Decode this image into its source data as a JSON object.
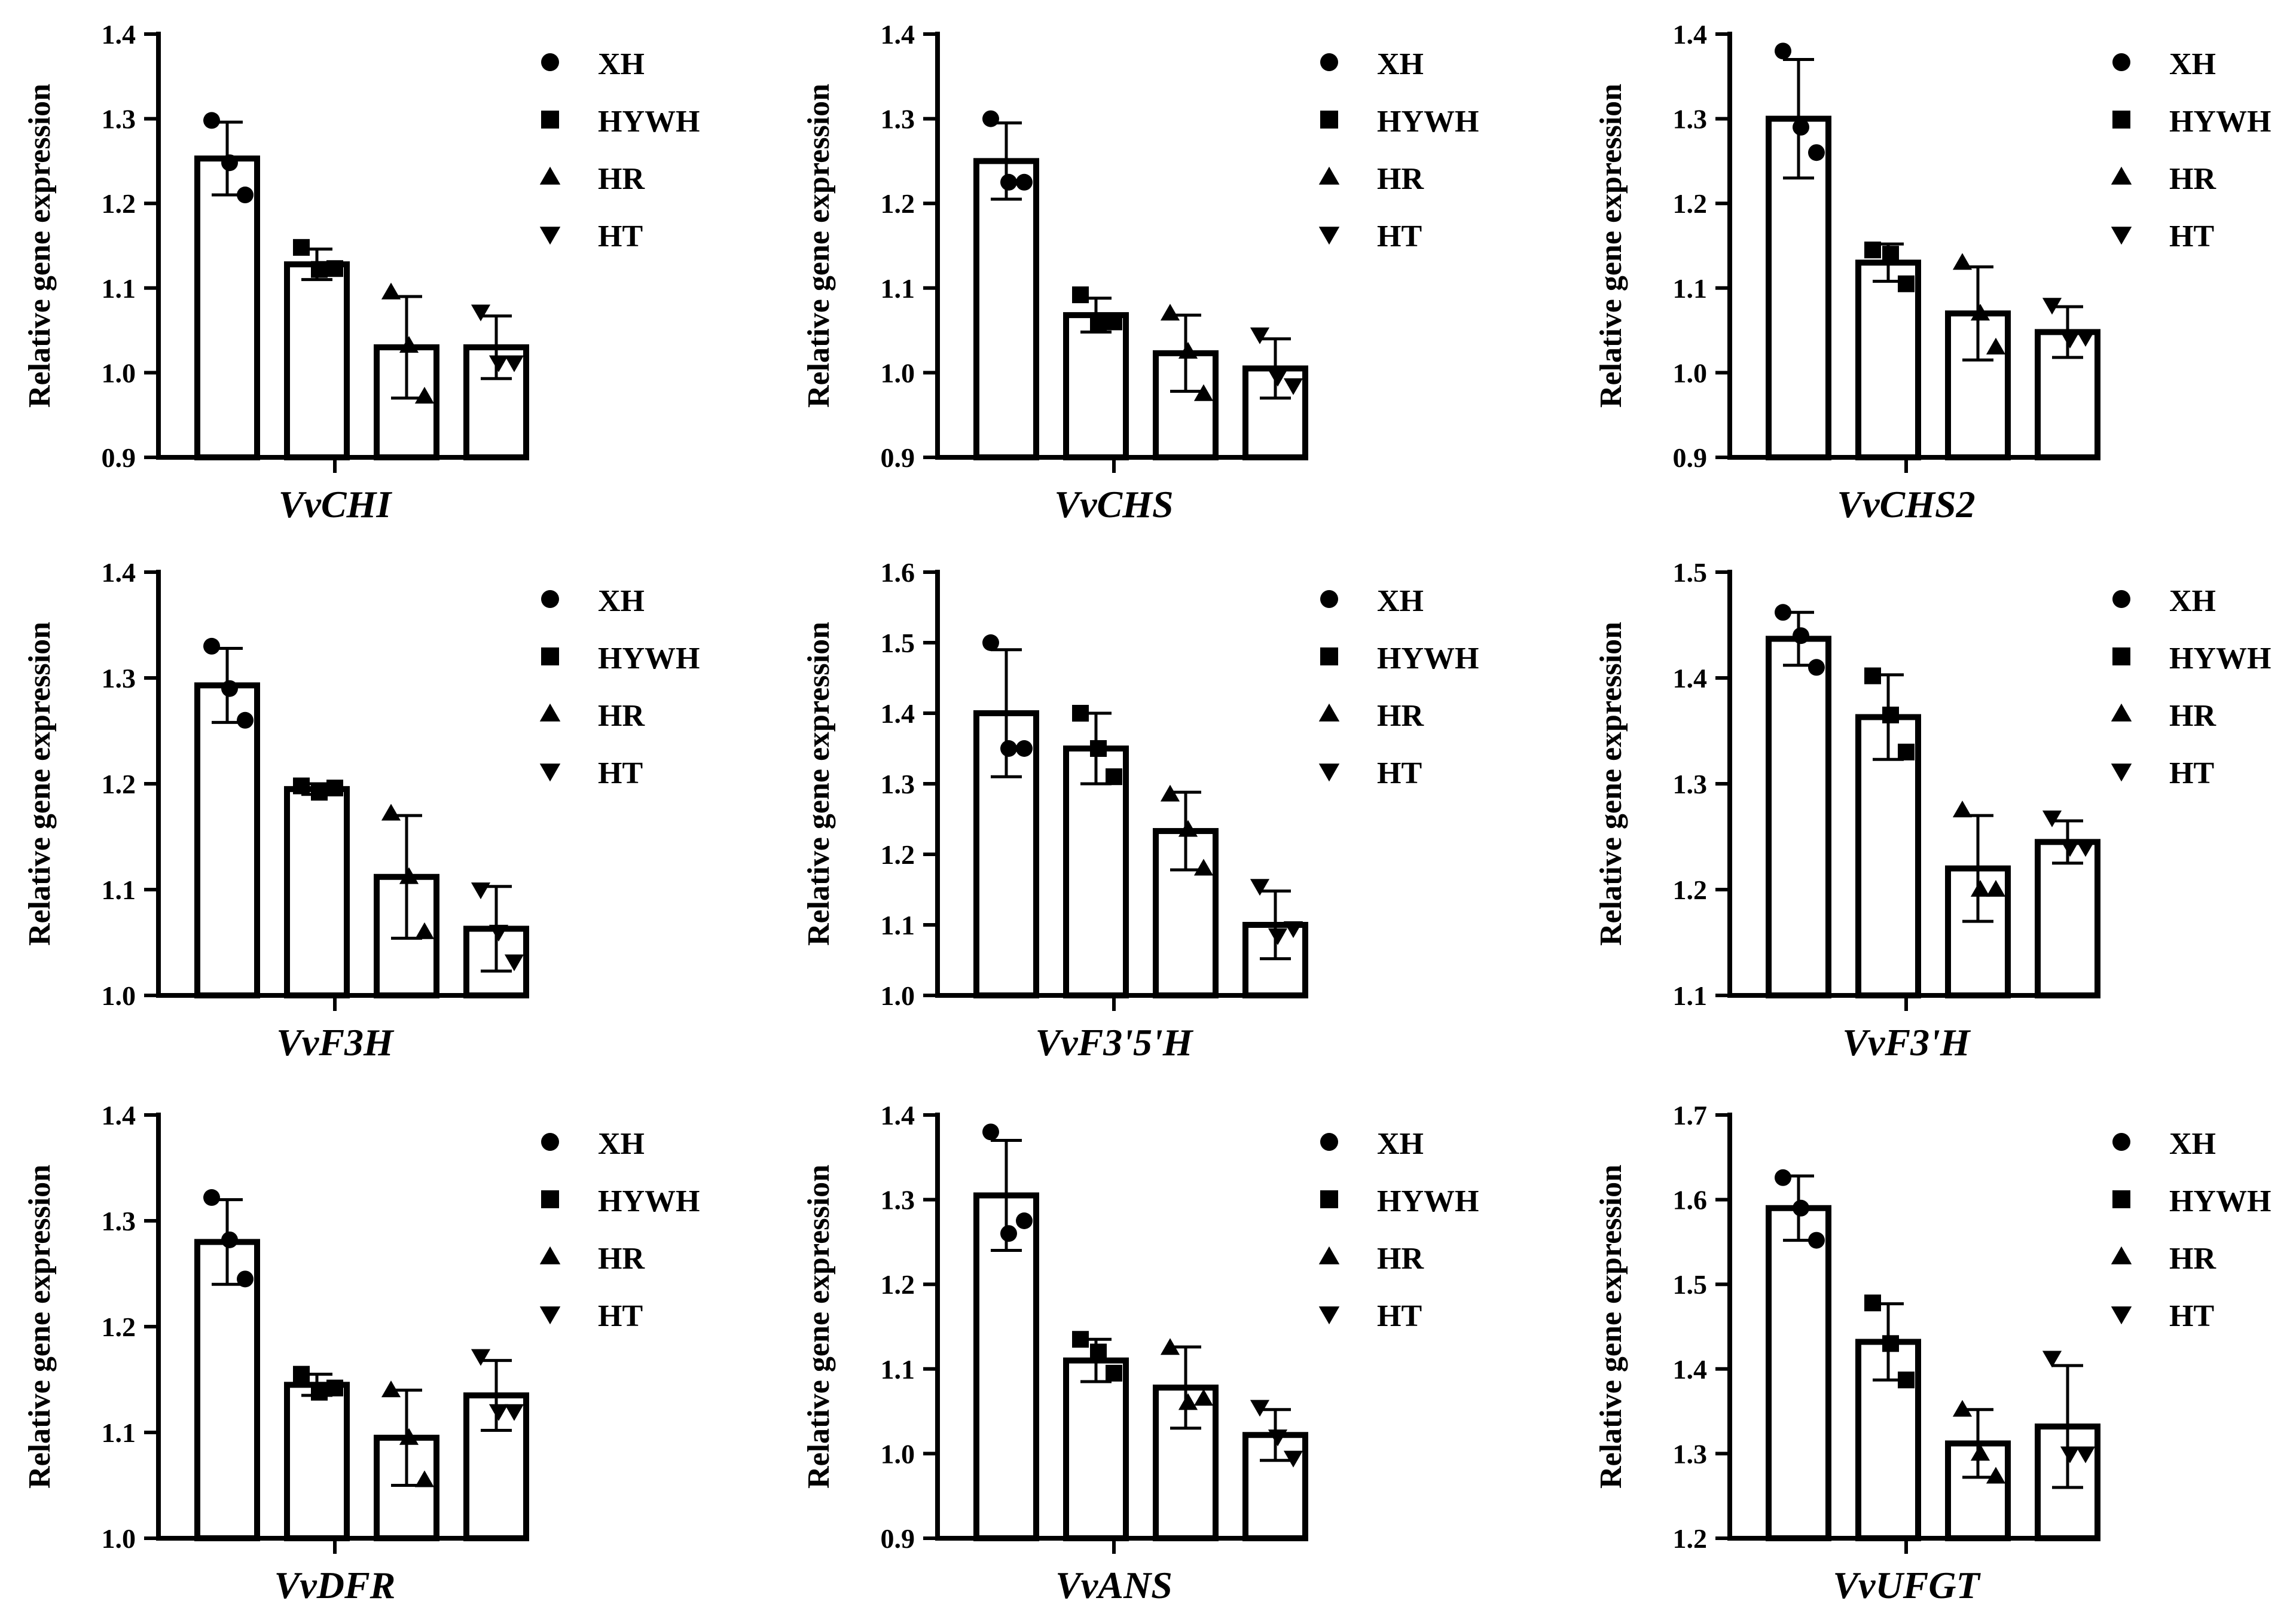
{
  "legend": [
    "XH",
    "HYWH",
    "HR",
    "HT"
  ],
  "legend_markers": [
    "circle",
    "square",
    "triangle-up",
    "triangle-down"
  ],
  "ylabel": "Relative gene expression",
  "chart_data": [
    {
      "type": "bar",
      "title": "VvCHI",
      "xlabel": "VvCHI",
      "ylabel": "Relative gene expression",
      "ylim": [
        0.9,
        1.4
      ],
      "yticks": [
        "0.9",
        "1.0",
        "1.1",
        "1.2",
        "1.3",
        "1.4"
      ],
      "categories": [
        "XH",
        "HYWH",
        "HR",
        "HT"
      ],
      "values": [
        1.253,
        1.128,
        1.03,
        1.03
      ],
      "errors": [
        0.043,
        0.018,
        0.06,
        0.037
      ],
      "points": [
        [
          1.298,
          1.248,
          1.21
        ],
        [
          1.148,
          1.122,
          1.123
        ],
        [
          1.095,
          1.032,
          0.972
        ],
        [
          1.072,
          1.012,
          1.012
        ]
      ]
    },
    {
      "type": "bar",
      "title": "VvCHS",
      "xlabel": "VvCHS",
      "ylabel": "Relative gene expression",
      "ylim": [
        0.9,
        1.4
      ],
      "yticks": [
        "0.9",
        "1.0",
        "1.1",
        "1.2",
        "1.3",
        "1.4"
      ],
      "categories": [
        "XH",
        "HYWH",
        "HR",
        "HT"
      ],
      "values": [
        1.25,
        1.068,
        1.023,
        1.005
      ],
      "errors": [
        0.045,
        0.02,
        0.045,
        0.035
      ],
      "points": [
        [
          1.3,
          1.225,
          1.225
        ],
        [
          1.092,
          1.058,
          1.06
        ],
        [
          1.07,
          1.025,
          0.975
        ],
        [
          1.045,
          0.995,
          0.985
        ]
      ]
    },
    {
      "type": "bar",
      "title": "VvCHS2",
      "xlabel": "VvCHS2",
      "ylabel": "Relative gene expression",
      "ylim": [
        0.9,
        1.4
      ],
      "yticks": [
        "0.9",
        "1.0",
        "1.1",
        "1.2",
        "1.3",
        "1.4"
      ],
      "categories": [
        "XH",
        "HYWH",
        "HR",
        "HT"
      ],
      "values": [
        1.3,
        1.13,
        1.07,
        1.048
      ],
      "errors": [
        0.07,
        0.022,
        0.055,
        0.03
      ],
      "points": [
        [
          1.38,
          1.29,
          1.26
        ],
        [
          1.145,
          1.14,
          1.105
        ],
        [
          1.13,
          1.07,
          1.03
        ],
        [
          1.08,
          1.04,
          1.042
        ]
      ]
    },
    {
      "type": "bar",
      "title": "VvF3H",
      "xlabel": "VvF3H",
      "ylabel": "Relative gene expression",
      "ylim": [
        1.0,
        1.4
      ],
      "yticks": [
        "1.0",
        "1.1",
        "1.2",
        "1.3",
        "1.4"
      ],
      "categories": [
        "XH",
        "HYWH",
        "HR",
        "HT"
      ],
      "values": [
        1.293,
        1.195,
        1.112,
        1.063
      ],
      "errors": [
        0.035,
        0.005,
        0.058,
        0.04
      ],
      "points": [
        [
          1.33,
          1.29,
          1.26
        ],
        [
          1.198,
          1.192,
          1.196
        ],
        [
          1.172,
          1.112,
          1.06
        ],
        [
          1.1,
          1.06,
          1.032
        ]
      ]
    },
    {
      "type": "bar",
      "title": "VvF3'5'H",
      "xlabel": "VvF3'5'H",
      "ylabel": "Relative gene expression",
      "ylim": [
        1.0,
        1.6
      ],
      "yticks": [
        "1.0",
        "1.1",
        "1.2",
        "1.3",
        "1.4",
        "1.5",
        "1.6"
      ],
      "categories": [
        "XH",
        "HYWH",
        "HR",
        "HT"
      ],
      "values": [
        1.4,
        1.35,
        1.233,
        1.1
      ],
      "errors": [
        0.09,
        0.05,
        0.055,
        0.048
      ],
      "points": [
        [
          1.5,
          1.35,
          1.35
        ],
        [
          1.4,
          1.35,
          1.31
        ],
        [
          1.285,
          1.235,
          1.18
        ],
        [
          1.155,
          1.085,
          1.095
        ]
      ]
    },
    {
      "type": "bar",
      "title": "VvF3'H",
      "xlabel": "VvF3'H",
      "ylabel": "Relative gene expression",
      "ylim": [
        1.1,
        1.5
      ],
      "yticks": [
        "1.1",
        "1.2",
        "1.3",
        "1.4",
        "1.5"
      ],
      "categories": [
        "XH",
        "HYWH",
        "HR",
        "HT"
      ],
      "values": [
        1.437,
        1.363,
        1.22,
        1.245
      ],
      "errors": [
        0.025,
        0.04,
        0.05,
        0.02
      ],
      "points": [
        [
          1.462,
          1.44,
          1.41
        ],
        [
          1.402,
          1.365,
          1.33
        ],
        [
          1.275,
          1.2,
          1.2
        ],
        [
          1.268,
          1.24,
          1.24
        ]
      ]
    },
    {
      "type": "bar",
      "title": "VvDFR",
      "xlabel": "VvDFR",
      "ylabel": "Relative gene expression",
      "ylim": [
        1.0,
        1.4
      ],
      "yticks": [
        "1.0",
        "1.1",
        "1.2",
        "1.3",
        "1.4"
      ],
      "categories": [
        "XH",
        "HYWH",
        "HR",
        "HT"
      ],
      "values": [
        1.28,
        1.145,
        1.095,
        1.135
      ],
      "errors": [
        0.04,
        0.01,
        0.045,
        0.033
      ],
      "points": [
        [
          1.322,
          1.282,
          1.245
        ],
        [
          1.155,
          1.138,
          1.142
        ],
        [
          1.14,
          1.095,
          1.055
        ],
        [
          1.172,
          1.12,
          1.12
        ]
      ]
    },
    {
      "type": "bar",
      "title": "VvANS",
      "xlabel": "VvANS",
      "ylabel": "Relative gene expression",
      "ylim": [
        0.9,
        1.4
      ],
      "yticks": [
        "0.9",
        "1.0",
        "1.1",
        "1.2",
        "1.3",
        "1.4"
      ],
      "categories": [
        "XH",
        "HYWH",
        "HR",
        "HT"
      ],
      "values": [
        1.305,
        1.11,
        1.078,
        1.022
      ],
      "errors": [
        0.065,
        0.025,
        0.048,
        0.03
      ],
      "points": [
        [
          1.38,
          1.26,
          1.275
        ],
        [
          1.135,
          1.12,
          1.095
        ],
        [
          1.125,
          1.06,
          1.065
        ],
        [
          1.055,
          1.02,
          0.995
        ]
      ]
    },
    {
      "type": "bar",
      "title": "VvUFGT",
      "xlabel": "VvUFGT",
      "ylabel": "Relative gene expression",
      "ylim": [
        1.2,
        1.7
      ],
      "yticks": [
        "1.2",
        "1.3",
        "1.4",
        "1.5",
        "1.6",
        "1.7"
      ],
      "categories": [
        "XH",
        "HYWH",
        "HR",
        "HT"
      ],
      "values": [
        1.59,
        1.432,
        1.312,
        1.332
      ],
      "errors": [
        0.038,
        0.045,
        0.04,
        0.072
      ],
      "points": [
        [
          1.626,
          1.59,
          1.552
        ],
        [
          1.478,
          1.43,
          1.387
        ],
        [
          1.352,
          1.3,
          1.273
        ],
        [
          1.413,
          1.3,
          1.3
        ]
      ]
    }
  ]
}
